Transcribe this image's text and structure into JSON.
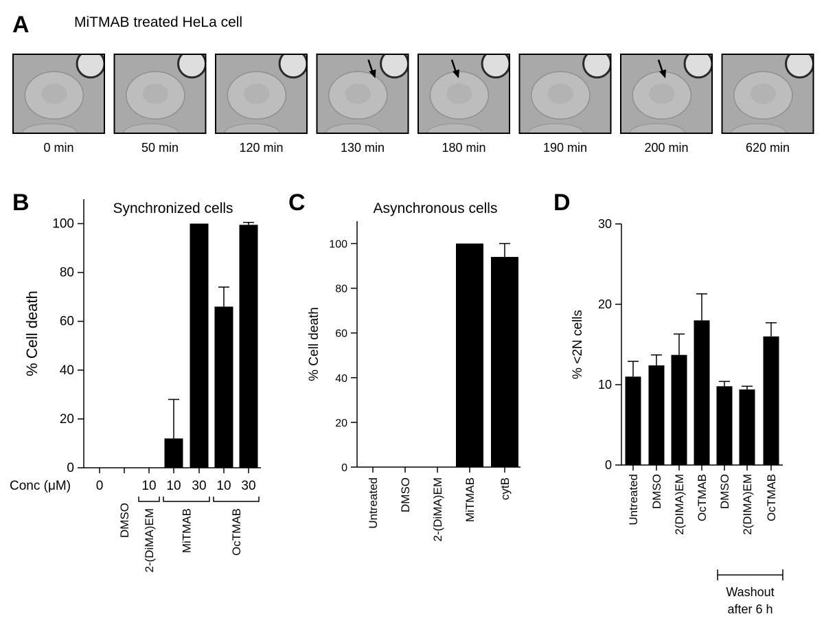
{
  "panel_a": {
    "letter": "A",
    "title": "MiTMAB treated HeLa cell",
    "frames": [
      {
        "time": "0 min",
        "arrow": false
      },
      {
        "time": "50 min",
        "arrow": false
      },
      {
        "time": "120 min",
        "arrow": false
      },
      {
        "time": "130 min",
        "arrow": true
      },
      {
        "time": "180 min",
        "arrow": true
      },
      {
        "time": "190 min",
        "arrow": false
      },
      {
        "time": "200 min",
        "arrow": true
      },
      {
        "time": "620 min",
        "arrow": false
      }
    ]
  },
  "chart_data": [
    {
      "panel": "B",
      "type": "bar",
      "title": "Synchronized cells",
      "ylabel": "% Cell death",
      "ylim": [
        0,
        110
      ],
      "yticks": [
        0,
        20,
        40,
        60,
        80,
        100
      ],
      "row_label": "Conc (μM)",
      "categories": [
        "0",
        "DMSO",
        "10",
        "10",
        "30",
        "10",
        "30"
      ],
      "values": [
        0,
        0,
        0,
        12,
        100,
        66,
        99.5
      ],
      "errors": [
        0,
        0,
        0,
        16,
        0,
        8,
        1
      ],
      "groups": [
        {
          "label": "2-(DiMA)EM",
          "start": 2,
          "end": 2
        },
        {
          "label": "MiTMAB",
          "start": 3,
          "end": 4
        },
        {
          "label": "OcTMAB",
          "start": 5,
          "end": 6
        }
      ],
      "bar_color": "#000000"
    },
    {
      "panel": "C",
      "type": "bar",
      "title": "Asynchronous cells",
      "ylabel": "% Cell death",
      "ylim": [
        0,
        110
      ],
      "yticks": [
        0,
        20,
        40,
        60,
        80,
        100
      ],
      "categories": [
        "Untreated",
        "DMSO",
        "2-(DiMA)EM",
        "MiTMAB",
        "cytB"
      ],
      "values": [
        0,
        0,
        0,
        100,
        94
      ],
      "errors": [
        0,
        0,
        0,
        0,
        6
      ],
      "bar_color": "#000000"
    },
    {
      "panel": "D",
      "type": "bar",
      "ylabel": "% <2N cells",
      "ylim": [
        0,
        30
      ],
      "yticks": [
        0,
        10,
        20,
        30
      ],
      "categories": [
        "Untreated",
        "DMSO",
        "2(DIMA)EM",
        "OcTMAB",
        "DMSO",
        "2(DIMA)EM",
        "OcTMAB"
      ],
      "values": [
        11,
        12.4,
        13.7,
        18,
        9.8,
        9.4,
        16
      ],
      "errors": [
        1.9,
        1.3,
        2.6,
        3.3,
        0.6,
        0.4,
        1.7
      ],
      "groups": [
        {
          "label_lines": [
            "Washout",
            "after 6 h"
          ],
          "start": 4,
          "end": 6
        }
      ],
      "bar_color": "#000000"
    }
  ]
}
